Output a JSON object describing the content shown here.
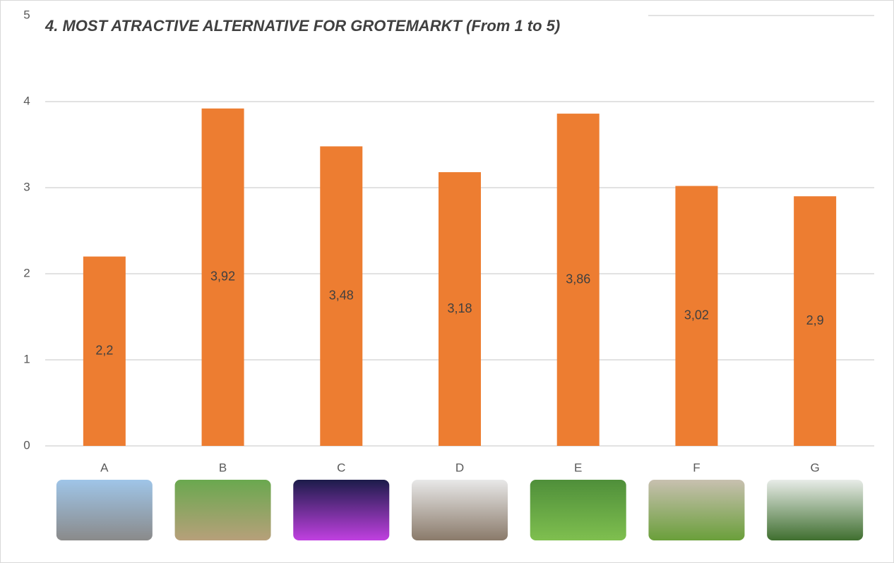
{
  "chart_data": {
    "type": "bar",
    "title": "4. MOST ATRACTIVE ALTERNATIVE FOR GROTEMARKT (From 1 to 5)",
    "categories": [
      "A",
      "B",
      "C",
      "D",
      "E",
      "F",
      "G"
    ],
    "values": [
      2.2,
      3.92,
      3.48,
      3.18,
      3.86,
      3.02,
      2.9
    ],
    "value_labels": [
      "2,2",
      "3,92",
      "3,48",
      "3,18",
      "3,86",
      "3,02",
      "2,9"
    ],
    "color": "#ed7d31",
    "ylim": [
      0,
      5
    ],
    "yticks": [
      0,
      1,
      2,
      3,
      4,
      5
    ],
    "grid": true
  }
}
